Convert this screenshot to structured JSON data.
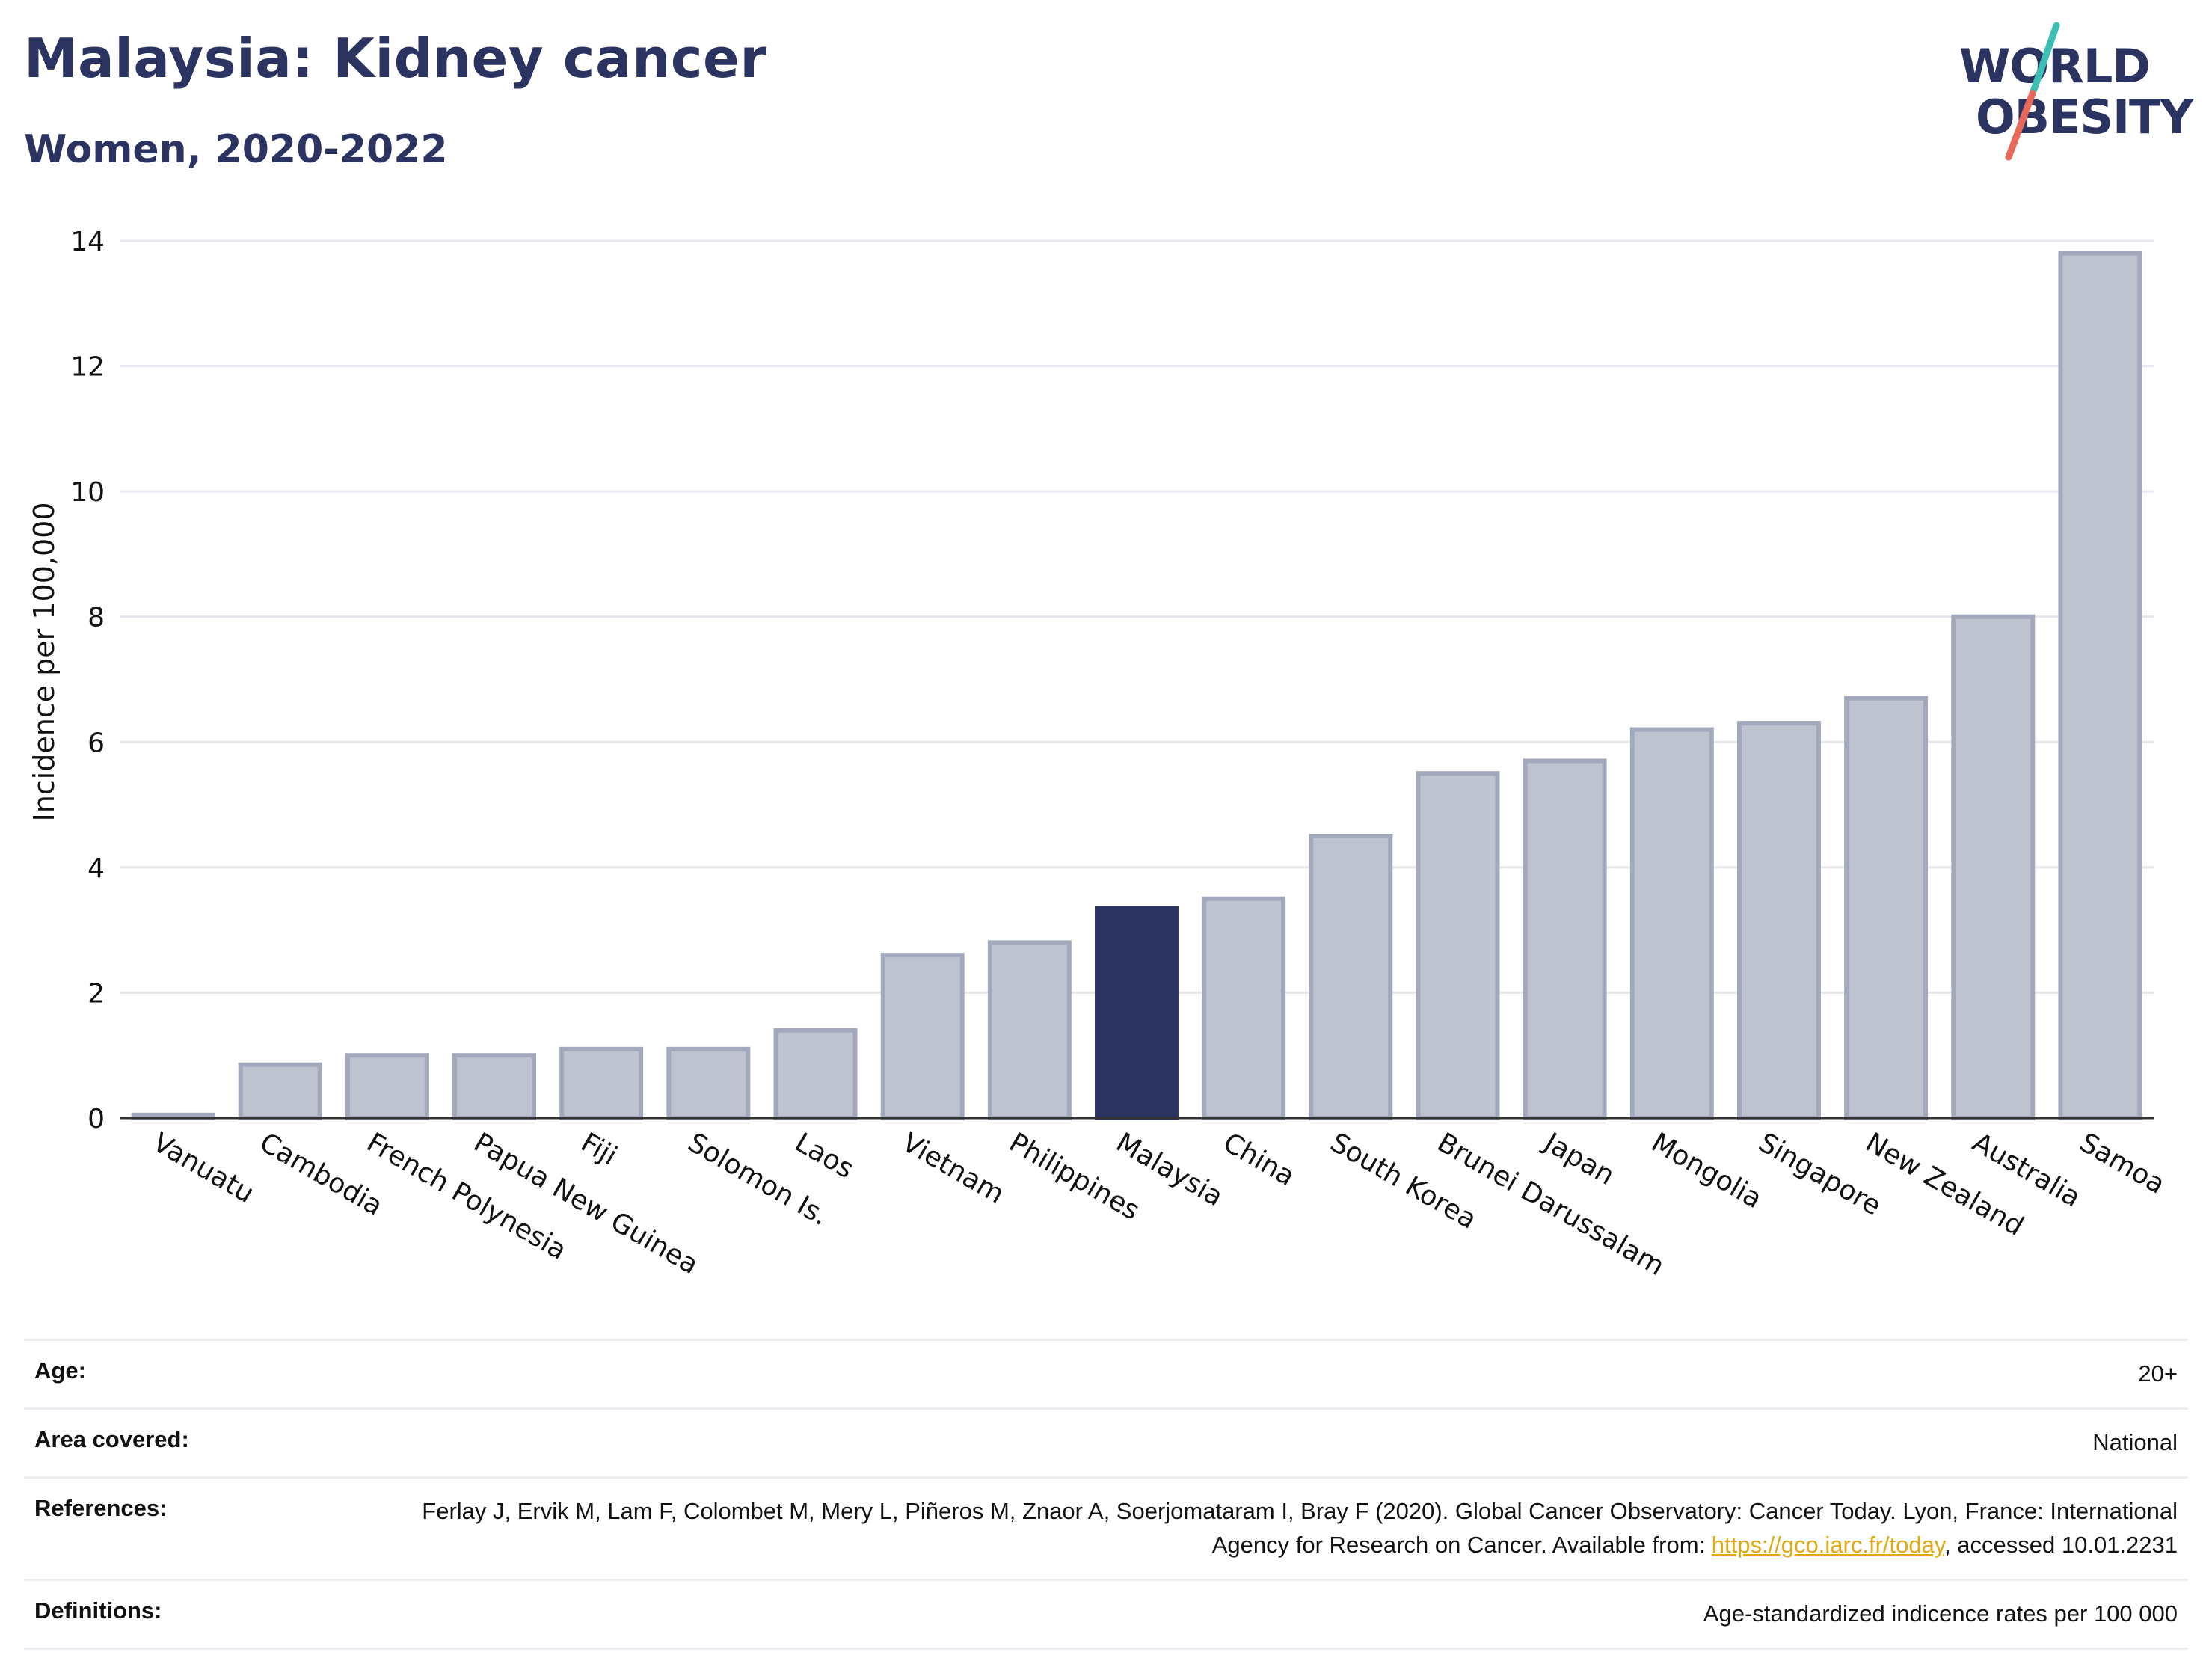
{
  "header": {
    "title": "Malaysia: Kidney cancer",
    "subtitle": "Women, 2020-2022"
  },
  "logo": {
    "line1": "WORLD",
    "line2": "OBESITY",
    "slash_colors": [
      "#3bbfb4",
      "#e8685a"
    ],
    "text_color": "#2b3461"
  },
  "chart_data": {
    "type": "bar",
    "title": "Malaysia: Kidney cancer",
    "subtitle": "Women, 2020-2022",
    "xlabel": "",
    "ylabel": "Incidence per 100,000",
    "ylim": [
      0,
      14
    ],
    "yticks": [
      0,
      2,
      4,
      6,
      8,
      10,
      12,
      14
    ],
    "grid": true,
    "highlight": "Malaysia",
    "colors": {
      "bar": "#bfc3cf",
      "bar_edge": "#a3a9bc",
      "highlight": "#2b3461",
      "axis": "#333333",
      "grid": "#e6e8ee"
    },
    "categories": [
      "Vanuatu",
      "Cambodia",
      "French Polynesia",
      "Papua New Guinea",
      "Fiji",
      "Solomon Is.",
      "Laos",
      "Vietnam",
      "Philippines",
      "Malaysia",
      "China",
      "South Korea",
      "Brunei Darussalam",
      "Japan",
      "Mongolia",
      "Singapore",
      "New Zealand",
      "Australia",
      "Samoa"
    ],
    "values": [
      0.05,
      0.85,
      1.0,
      1.0,
      1.1,
      1.1,
      1.4,
      2.6,
      2.8,
      3.35,
      3.5,
      4.5,
      5.5,
      5.7,
      6.2,
      6.3,
      6.7,
      8.0,
      13.8
    ]
  },
  "meta": {
    "age_label": "Age:",
    "age_value": "20+",
    "area_label": "Area covered:",
    "area_value": "National",
    "references_label": "References:",
    "references_text": "Ferlay J, Ervik M, Lam F, Colombet M, Mery L, Piñeros M, Znaor A, Soerjomataram I, Bray F (2020). Global Cancer Observatory: Cancer Today. Lyon, France: International Agency for Research on Cancer. Available from: ",
    "references_link": "https://gco.iarc.fr/today",
    "references_suffix": ", accessed 10.01.2231",
    "definitions_label": "Definitions:",
    "definitions_value": "Age-standardized indicence rates per 100 000"
  }
}
